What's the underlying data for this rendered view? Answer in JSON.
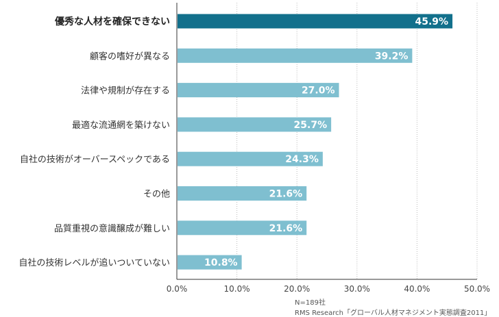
{
  "chart_data": {
    "type": "bar",
    "orientation": "horizontal",
    "categories": [
      "優秀な人材を確保できない",
      "顧客の嗜好が異なる",
      "法律や規制が存在する",
      "最適な流通網を築けない",
      "自社の技術がオーバースペックである",
      "その他",
      "品質重視の意識醸成が難しい",
      "自社の技術レベルが追いついていない"
    ],
    "values": [
      45.9,
      39.2,
      27.0,
      25.7,
      24.3,
      21.6,
      21.6,
      10.8
    ],
    "value_labels": [
      "45.9%",
      "39.2%",
      "27.0%",
      "25.7%",
      "24.3%",
      "21.6%",
      "21.6%",
      "10.8%"
    ],
    "highlight_index": 0,
    "xlim": [
      0,
      50
    ],
    "x_ticks": [
      0,
      10,
      20,
      30,
      40,
      50
    ],
    "x_tick_labels": [
      "0.0%",
      "10.0%",
      "20.0%",
      "30.0%",
      "40.0%",
      "50.0%"
    ],
    "grid": "vertical dotted",
    "colors": {
      "highlight": "#12708c",
      "bar": "#7fbfd0",
      "grid": "#bbbbbb",
      "axis": "#333333"
    }
  },
  "notes": {
    "sample": "N=189社",
    "source": "RMS Research「グローバル人材マネジメント実態調査2011」"
  }
}
